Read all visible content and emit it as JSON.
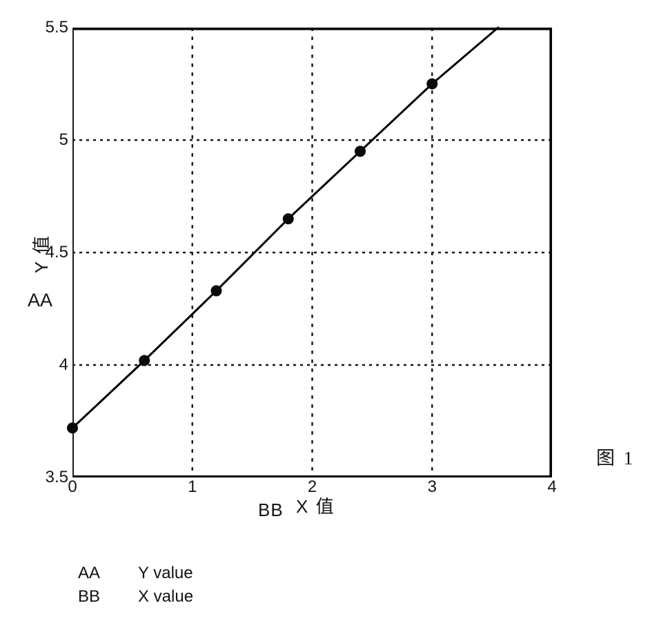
{
  "figure": {
    "caption": "图 1",
    "y_axis_label": "Y 值",
    "y_axis_annotation": "AA",
    "x_axis_label": "X 值",
    "x_axis_annotation": "BB"
  },
  "legend": {
    "rows": [
      {
        "key": "AA",
        "value": "Y value"
      },
      {
        "key": "BB",
        "value": "X value"
      }
    ]
  },
  "chart_data": {
    "type": "line",
    "title": "",
    "xlabel": "X 值",
    "ylabel": "Y 值",
    "x": [
      0,
      0.6,
      1.2,
      1.8,
      2.4,
      3.0
    ],
    "y": [
      3.72,
      4.02,
      4.33,
      4.65,
      4.95,
      5.25
    ],
    "line_end": {
      "x": 3.55,
      "y": 5.5
    },
    "xlim": [
      0,
      4
    ],
    "ylim": [
      3.5,
      5.5
    ],
    "x_ticks": [
      0,
      1,
      2,
      3,
      4
    ],
    "x_tick_labels": [
      "0",
      "1",
      "2",
      "3",
      "4"
    ],
    "y_ticks": [
      3.5,
      4,
      4.5,
      5,
      5.5
    ],
    "y_tick_labels": [
      "3.5",
      "4",
      "4.5",
      "5",
      "5.5"
    ],
    "grid": true,
    "grid_style": "dashed",
    "legend_position": "below",
    "line_color": "#000000",
    "marker_color": "#000000",
    "annotations": [
      {
        "text": "AA",
        "meaning": "Y value"
      },
      {
        "text": "BB",
        "meaning": "X value"
      }
    ]
  }
}
